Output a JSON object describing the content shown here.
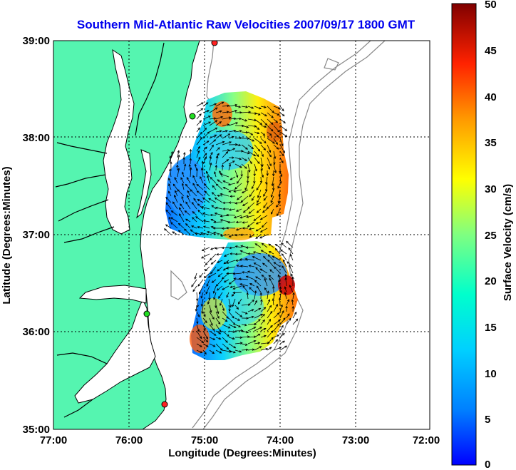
{
  "title": "Southern Mid-Atlantic Raw Velocities 2007/09/17 1800 GMT",
  "x_axis": {
    "label": "Longitude (Degrees:Minutes)",
    "ticks": [
      "77:00",
      "76:00",
      "75:00",
      "74:00",
      "73:00",
      "72:00"
    ]
  },
  "y_axis": {
    "label": "Latitude (Degrees:Minutes)",
    "ticks": [
      "39:00",
      "38:00",
      "37:00",
      "36:00",
      "35:00"
    ]
  },
  "colorbar": {
    "label": "Surface Velocity (cm/s)",
    "ticks": [
      "50",
      "45",
      "40",
      "35",
      "30",
      "25",
      "20",
      "15",
      "10",
      "5",
      "0"
    ],
    "range": [
      0,
      50
    ],
    "colormap": "jet"
  },
  "colors": {
    "land": "#55f5b0",
    "water": "#ffffff",
    "title": "#0000ee",
    "grid": "#000000",
    "bathymetry": "#888888",
    "station_red": "#ff2222",
    "station_green": "#22dd22"
  },
  "map_extent": {
    "lon": [
      -77,
      -72
    ],
    "lat": [
      35,
      39
    ]
  },
  "stations": [
    {
      "color": "red",
      "lon": -74.85,
      "lat": 38.97
    },
    {
      "color": "green",
      "lon": -75.15,
      "lat": 38.22
    },
    {
      "color": "green",
      "lon": -75.75,
      "lat": 36.17
    },
    {
      "color": "red",
      "lon": -75.53,
      "lat": 35.27
    }
  ]
}
